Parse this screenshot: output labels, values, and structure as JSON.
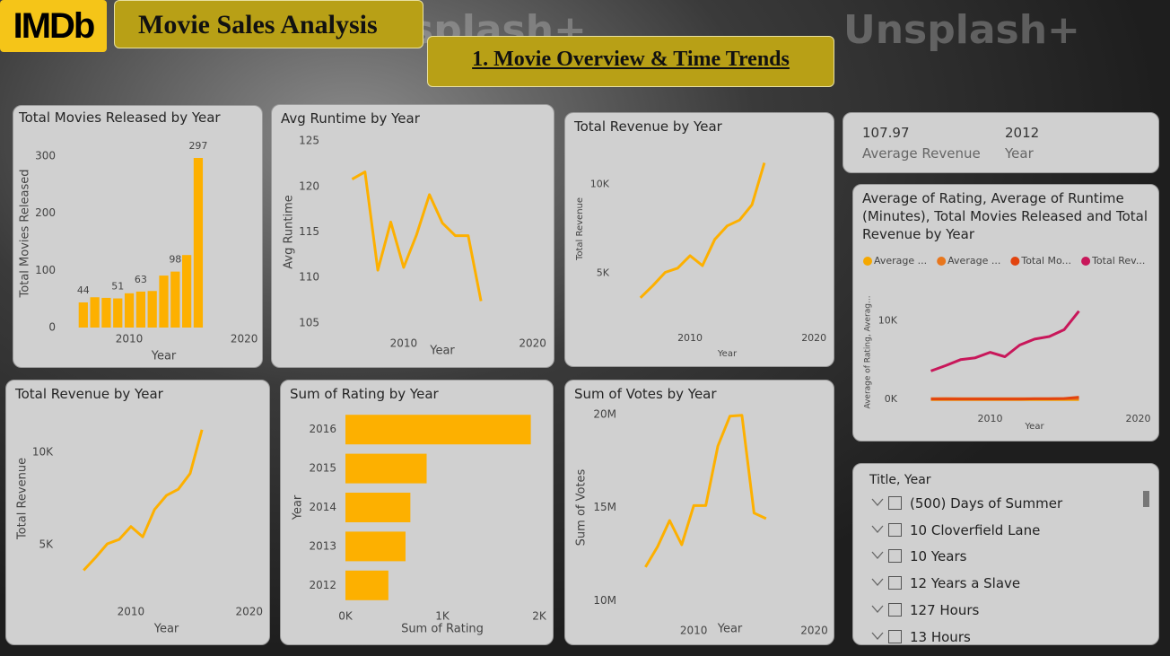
{
  "header": {
    "logo": "IMDb",
    "title": "Movie Sales Analysis",
    "subtitle": "1. Movie Overview & Time Trends",
    "watermark": "Unsplash+"
  },
  "chart_data": [
    {
      "type": "bar",
      "title": "Total Movies Released by Year",
      "x_label": "Year",
      "y_label": "Total Movies Released",
      "x": [
        2006,
        2007,
        2008,
        2009,
        2010,
        2011,
        2012,
        2013,
        2014,
        2015,
        2016
      ],
      "values": [
        44,
        53,
        52,
        51,
        60,
        63,
        64,
        91,
        98,
        127,
        297
      ],
      "value_labels": [
        "44",
        null,
        null,
        "51",
        null,
        "63",
        null,
        null,
        "98",
        null,
        "297"
      ],
      "color": "#fdb000",
      "xlim": [
        2005,
        2021
      ],
      "xticks": [
        2010,
        2020
      ],
      "ylim": [
        0,
        330
      ],
      "yticks": [
        0,
        100,
        200,
        300
      ]
    },
    {
      "type": "line",
      "title": "Avg Runtime by Year",
      "x_label": "Year",
      "y_label": "Avg Runtime",
      "x": [
        2006,
        2007,
        2008,
        2009,
        2010,
        2011,
        2012,
        2013,
        2014,
        2015,
        2016
      ],
      "values": [
        120.8,
        121.6,
        110.8,
        116.1,
        111.1,
        114.7,
        119.1,
        116.0,
        114.6,
        114.6,
        107.4
      ],
      "color": "#fdb000",
      "xlim": [
        2005,
        2021
      ],
      "xticks": [
        2010,
        2020
      ],
      "ylim": [
        104,
        126
      ],
      "yticks": [
        105,
        110,
        115,
        120,
        125
      ]
    },
    {
      "type": "line",
      "title": "Total Revenue by Year",
      "x_label": "Year",
      "y_label": "Total Revenue",
      "x": [
        2006,
        2007,
        2008,
        2009,
        2010,
        2011,
        2012,
        2013,
        2014,
        2015,
        2016
      ],
      "values": [
        3624,
        4307,
        5053,
        5292,
        5990,
        5432,
        6910,
        7667,
        7997,
        8854,
        11212
      ],
      "color": "#fdb000",
      "xlim": [
        2005,
        2021
      ],
      "xticks": [
        2010,
        2020
      ],
      "ylim": [
        2000,
        13000
      ],
      "yticks": [
        {
          "value": 5000,
          "label": "5K"
        },
        {
          "value": 10000,
          "label": "10K"
        }
      ]
    },
    {
      "type": "line",
      "title": "Average of Rating, Average of Runtime (Minutes), Total Movies Released and Total Revenue by Year",
      "x_label": "Year",
      "y_label": "Average of Rating, Averag...",
      "x": [
        2006,
        2007,
        2008,
        2009,
        2010,
        2011,
        2012,
        2013,
        2014,
        2015,
        2016
      ],
      "series": [
        {
          "name": "Average ...",
          "color": "#f5a800",
          "values": [
            7.13,
            6.93,
            6.78,
            6.96,
            6.83,
            6.84,
            6.93,
            6.81,
            6.84,
            6.6,
            6.44
          ]
        },
        {
          "name": "Average ...",
          "color": "#e8761c",
          "values": [
            120.8,
            121.6,
            110.8,
            116.1,
            111.1,
            114.7,
            119.1,
            116.0,
            114.6,
            114.6,
            107.4
          ]
        },
        {
          "name": "Total Mo...",
          "color": "#e2440f",
          "values": [
            44,
            53,
            52,
            51,
            60,
            63,
            64,
            91,
            98,
            127,
            297
          ]
        },
        {
          "name": "Total Rev...",
          "color": "#c8175a",
          "values": [
            3624,
            4307,
            5053,
            5292,
            5990,
            5432,
            6910,
            7667,
            7997,
            8854,
            11212
          ]
        }
      ],
      "xlim": [
        2005,
        2021
      ],
      "xticks": [
        2010,
        2020
      ],
      "ylim": [
        -1000,
        13000
      ],
      "yticks": [
        {
          "value": 0,
          "label": "0K"
        },
        {
          "value": 10000,
          "label": "10K"
        }
      ]
    },
    {
      "type": "line",
      "title": "Total Revenue by Year",
      "x_label": "Year",
      "y_label": "Total Revenue",
      "x": [
        2006,
        2007,
        2008,
        2009,
        2010,
        2011,
        2012,
        2013,
        2014,
        2015,
        2016
      ],
      "values": [
        3624,
        4307,
        5053,
        5292,
        5990,
        5432,
        6910,
        7667,
        7997,
        8854,
        11212
      ],
      "color": "#fdb000",
      "xlim": [
        2005,
        2021
      ],
      "xticks": [
        2010,
        2020
      ],
      "ylim": [
        2000,
        13000
      ],
      "yticks": [
        {
          "value": 5000,
          "label": "5K"
        },
        {
          "value": 10000,
          "label": "10K"
        }
      ]
    },
    {
      "type": "hbar",
      "title": "Sum of Rating by Year",
      "x_label": "Sum of Rating",
      "y_label": "Year",
      "categories": [
        "2016",
        "2015",
        "2014",
        "2013",
        "2012"
      ],
      "values": [
        1913,
        838,
        670,
        620,
        443
      ],
      "color": "#fdb000",
      "xlim": [
        0,
        2000
      ],
      "xticks": [
        {
          "value": 0,
          "label": "0K"
        },
        {
          "value": 1000,
          "label": "1K"
        },
        {
          "value": 2000,
          "label": "2K"
        }
      ]
    },
    {
      "type": "line",
      "title": "Sum of Votes by Year",
      "x_label": "Year",
      "y_label": "Sum of Votes",
      "x": [
        2006,
        2007,
        2008,
        2009,
        2010,
        2011,
        2012,
        2013,
        2014,
        2015,
        2016
      ],
      "values": [
        11800000,
        12900000,
        14300000,
        13000000,
        15100000,
        15100000,
        18300000,
        19900000,
        19950000,
        14700000,
        14400000
      ],
      "color": "#fdb000",
      "xlim": [
        2005,
        2021
      ],
      "xticks": [
        2010,
        2020
      ],
      "ylim": [
        9000000,
        21000000
      ],
      "yticks": [
        {
          "value": 10000000,
          "label": "10M"
        },
        {
          "value": 15000000,
          "label": "15M"
        },
        {
          "value": 20000000,
          "label": "20M"
        }
      ]
    }
  ],
  "card": {
    "items": [
      {
        "value": 107.97,
        "label": "Average Revenue"
      },
      {
        "value": 2012,
        "label": "Year"
      }
    ]
  },
  "slicer": {
    "title": "Title, Year",
    "items": [
      "(500) Days of Summer",
      "10 Cloverfield Lane",
      "10 Years",
      "12 Years a Slave",
      "127 Hours",
      "13 Hours"
    ]
  }
}
